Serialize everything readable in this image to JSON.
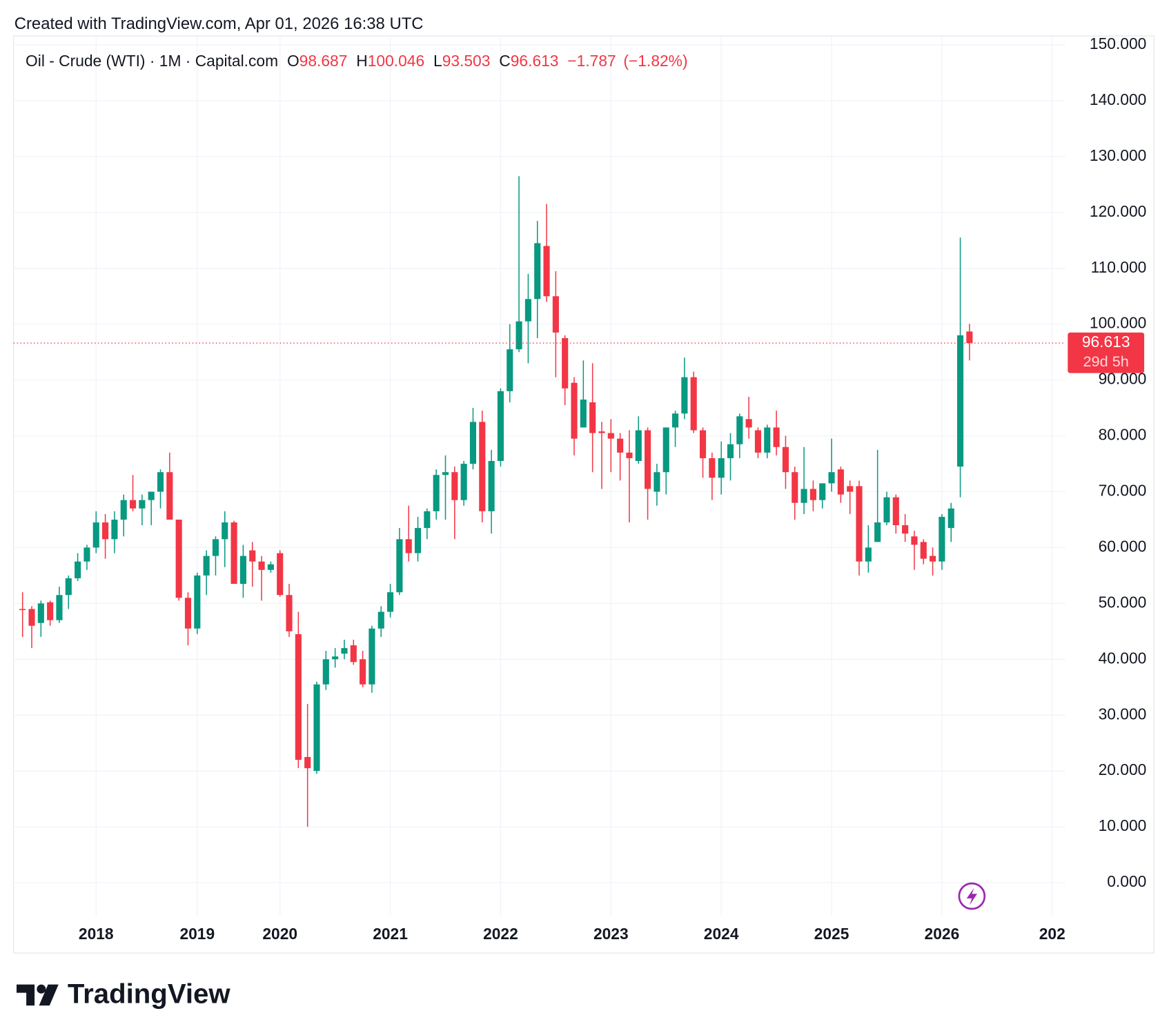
{
  "header": {
    "created": "Created with TradingView.com, Apr 01, 2026 16:38 UTC"
  },
  "footer": {
    "brand": "TradingView"
  },
  "chart_data": {
    "type": "candlestick",
    "legend": {
      "symbol": "Oil - Crude (WTI) · 1M · Capital.com",
      "labels": [
        "O",
        "H",
        "L",
        "C"
      ],
      "change": "−1.787",
      "change_pct": "(−1.82%)"
    },
    "countdown": "29d 5h",
    "up_color": "#089981",
    "down_color": "#f23645",
    "grid": true,
    "categories": [
      null,
      null,
      null,
      null,
      null,
      null,
      null,
      null,
      "2018",
      null,
      null,
      null,
      null,
      null,
      null,
      null,
      null,
      null,
      null,
      "2019",
      null,
      null,
      null,
      null,
      null,
      null,
      null,
      null,
      "2020",
      null,
      null,
      null,
      null,
      null,
      null,
      null,
      null,
      null,
      null,
      null,
      "2021",
      null,
      null,
      null,
      null,
      null,
      null,
      null,
      null,
      null,
      null,
      null,
      "2022",
      null,
      null,
      null,
      null,
      null,
      null,
      null,
      null,
      null,
      null,
      null,
      "2023",
      null,
      null,
      null,
      null,
      null,
      null,
      null,
      null,
      null,
      null,
      null,
      "2024",
      null,
      null,
      null,
      null,
      null,
      null,
      null,
      null,
      null,
      null,
      null,
      "2025",
      null,
      null,
      null,
      null,
      null,
      null,
      null,
      null,
      null,
      null,
      null,
      "2026",
      null,
      null,
      null,
      null,
      null,
      null,
      null,
      null,
      null,
      null,
      null,
      "202"
    ],
    "open": [
      49,
      49,
      46.5,
      50.2,
      47,
      51.5,
      54.5,
      57.5,
      60,
      64.5,
      61.5,
      65,
      68.5,
      67,
      68.5,
      70,
      73.5,
      65,
      51,
      45.5,
      55,
      58.5,
      61.5,
      64.5,
      53.5,
      59.5,
      57.5,
      56,
      59,
      51.5,
      44.5,
      22.5,
      20,
      35.5,
      40,
      41,
      42.5,
      40,
      35.5,
      45.5,
      48.5,
      52,
      61.5,
      59,
      63.5,
      66.5,
      73,
      73.5,
      68.5,
      75,
      82.5,
      66.5,
      75.5,
      88,
      95.5,
      100.5,
      104.5,
      114,
      105,
      97.5,
      89.5,
      81.5,
      86,
      80.8,
      80.5,
      79.5,
      77,
      75.5,
      81,
      70,
      73.5,
      81.5,
      84,
      90.5,
      81,
      76,
      72.5,
      76,
      78.5,
      83,
      81,
      77,
      81.5,
      78,
      73.5,
      68,
      70.5,
      68.5,
      71.5,
      74,
      71,
      71,
      57.5,
      61,
      64.5,
      69,
      64,
      62,
      61,
      58.5,
      57.5,
      63.5,
      74.5,
      98.687,
      null,
      null,
      null,
      null,
      null,
      null,
      null,
      null,
      null
    ],
    "high": [
      52,
      49.5,
      50.5,
      50.5,
      53,
      55,
      59,
      60.5,
      66.5,
      66,
      66.5,
      69.5,
      73,
      69.5,
      70,
      74,
      77,
      65,
      52,
      55.5,
      59.5,
      62,
      66.5,
      64.8,
      60.5,
      61,
      58.5,
      57.5,
      59.5,
      53.5,
      48.5,
      32,
      36,
      41.5,
      42,
      43.5,
      43.5,
      41.5,
      46,
      49.5,
      53.5,
      63.5,
      67.5,
      65.5,
      67,
      74,
      76.5,
      74.5,
      75.5,
      85,
      84.5,
      77.5,
      88.5,
      100,
      126.5,
      109,
      118.5,
      121.5,
      109.5,
      98,
      90.5,
      93.5,
      93,
      82.5,
      83,
      80.5,
      81,
      83.5,
      81.5,
      75,
      81.5,
      84.5,
      94,
      91.5,
      81.5,
      77,
      79,
      80.5,
      84,
      87,
      81.5,
      82,
      84.5,
      80,
      74.5,
      78,
      72,
      71.5,
      79.5,
      74.5,
      72,
      72,
      64,
      77.5,
      70,
      69.5,
      66,
      63,
      61.5,
      60,
      66,
      68,
      115.5,
      100.046,
      null,
      null,
      null,
      null,
      null,
      null,
      null,
      null,
      null
    ],
    "low": [
      44,
      42,
      44,
      46,
      46.5,
      49,
      54,
      56,
      59,
      58,
      59,
      62,
      66.5,
      64,
      64,
      67,
      65,
      50.5,
      42.5,
      44.5,
      51.5,
      55,
      56.5,
      53.5,
      51,
      53,
      50.5,
      55.5,
      51.2,
      44,
      20.5,
      10,
      19.5,
      34.5,
      38.5,
      40,
      39,
      35,
      34,
      44,
      47.5,
      51.5,
      57.5,
      57.5,
      61.5,
      65,
      65,
      61.5,
      67.5,
      74,
      64.5,
      62.5,
      74.5,
      86,
      95,
      93,
      97.5,
      104,
      90.5,
      85.5,
      76.5,
      81.5,
      73.5,
      70.5,
      73.5,
      72,
      64.5,
      75,
      65,
      67.5,
      69.5,
      78,
      83,
      80.5,
      72.5,
      68.5,
      69.5,
      72,
      76,
      79.5,
      76,
      76,
      76.5,
      70.5,
      65,
      66,
      66.5,
      67,
      70,
      68,
      66,
      55,
      55.5,
      61,
      64,
      62.5,
      61,
      56,
      57,
      55,
      56,
      61,
      69,
      93.503,
      null,
      null,
      null,
      null,
      null,
      null,
      null,
      null,
      null
    ],
    "close": [
      48.8,
      46,
      50,
      47,
      51.5,
      54.5,
      57.5,
      60,
      64.5,
      61.5,
      65,
      68.5,
      67,
      68.5,
      70,
      73.5,
      65,
      51,
      45.5,
      55,
      58.5,
      61.5,
      64.5,
      53.5,
      58.5,
      57.5,
      56,
      57,
      51.5,
      45,
      22,
      20.5,
      35.5,
      40,
      40.5,
      42,
      39.5,
      35.5,
      45.5,
      48.5,
      52,
      61.5,
      59,
      63.5,
      66.5,
      73,
      73.5,
      68.5,
      75,
      82.5,
      66.5,
      75.5,
      88,
      95.5,
      100.5,
      104.5,
      114.5,
      105,
      98.5,
      88.5,
      79.5,
      86.5,
      80.5,
      80.5,
      79.5,
      77,
      76,
      81,
      70.5,
      73.5,
      81.5,
      84,
      90.5,
      81,
      76,
      72.5,
      76,
      78.5,
      83.5,
      81.5,
      77,
      81.5,
      78,
      73.5,
      68,
      70.5,
      68.5,
      71.5,
      73.5,
      69.5,
      70,
      57.5,
      60,
      64.5,
      69,
      64,
      62.5,
      60.5,
      58,
      57.5,
      65.5,
      67,
      98,
      96.613,
      null,
      null,
      null,
      null,
      null,
      null,
      null,
      null,
      null
    ],
    "ylim": [
      -5.9,
      151.6
    ],
    "yticks": [
      {
        "value": 0,
        "label": "0.000"
      },
      {
        "value": 10,
        "label": "10.000"
      },
      {
        "value": 20,
        "label": "20.000"
      },
      {
        "value": 30,
        "label": "30.000"
      },
      {
        "value": 40,
        "label": "40.000"
      },
      {
        "value": 50,
        "label": "50.000"
      },
      {
        "value": 60,
        "label": "60.000"
      },
      {
        "value": 70,
        "label": "70.000"
      },
      {
        "value": 80,
        "label": "80.000"
      },
      {
        "value": 90,
        "label": "90.000"
      },
      {
        "value": 100,
        "label": "100.000"
      },
      {
        "value": 110,
        "label": "110.000"
      },
      {
        "value": 120,
        "label": "120.000"
      },
      {
        "value": 130,
        "label": "130.000"
      },
      {
        "value": 140,
        "label": "140.000"
      },
      {
        "value": 150,
        "label": "150.000"
      }
    ]
  }
}
